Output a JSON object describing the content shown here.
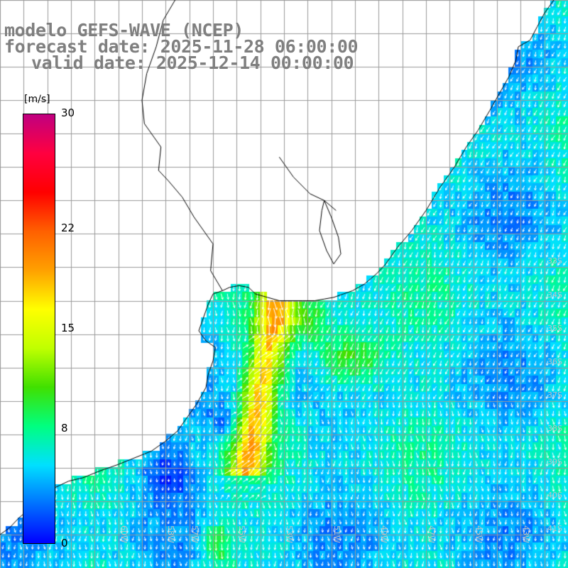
{
  "title": {
    "model": "modelo GEFS-WAVE (NCEP)",
    "forecast": "forecast date: 2025-11-28 06:00:00",
    "valid": "valid date: 2025-12-14 00:00:00"
  },
  "colorbar": {
    "unit": "[m/s]",
    "min": 0,
    "max": 30,
    "ticks": [
      {
        "label": "30",
        "value": 30
      },
      {
        "label": "22",
        "value": 22
      },
      {
        "label": "15",
        "value": 15
      },
      {
        "label": "8",
        "value": 8
      },
      {
        "label": "0",
        "value": 0
      }
    ],
    "colors": [
      "#0000ff",
      "#0070ff",
      "#00e0ff",
      "#00ff80",
      "#40e000",
      "#c0ff00",
      "#ffff00",
      "#ffa000",
      "#ff6000",
      "#ff0000",
      "#ff0040",
      "#c00080"
    ]
  },
  "map": {
    "field": "wind speed",
    "lon_range": [
      -65,
      -41
    ],
    "lat_range": [
      -42,
      -25
    ],
    "grid_step_deg": 1,
    "lon_labels": [
      {
        "label": "64W",
        "lon": -64
      },
      {
        "label": "60W",
        "lon": -60
      },
      {
        "label": "58W",
        "lon": -58
      },
      {
        "label": "57W",
        "lon": -57
      },
      {
        "label": "55W",
        "lon": -55
      },
      {
        "label": "53W",
        "lon": -53
      },
      {
        "label": "51W",
        "lon": -51
      },
      {
        "label": "49W",
        "lon": -49
      },
      {
        "label": "47W",
        "lon": -47
      },
      {
        "label": "45W",
        "lon": -45
      },
      {
        "label": "43W",
        "lon": -43
      }
    ],
    "lat_labels": [
      {
        "label": "33S",
        "lat": -33
      },
      {
        "label": "34S",
        "lat": -34
      },
      {
        "label": "35S",
        "lat": -35
      },
      {
        "label": "36S",
        "lat": -36
      },
      {
        "label": "37S",
        "lat": -37
      },
      {
        "label": "38S",
        "lat": -38
      },
      {
        "label": "39S",
        "lat": -39
      },
      {
        "label": "40S",
        "lat": -40
      },
      {
        "label": "41S",
        "lat": -41
      }
    ],
    "colors": {
      "land": "#ffffff",
      "coastline": "#000000",
      "gridline": "#9a9a9a",
      "arrow": "#ffffff"
    }
  }
}
